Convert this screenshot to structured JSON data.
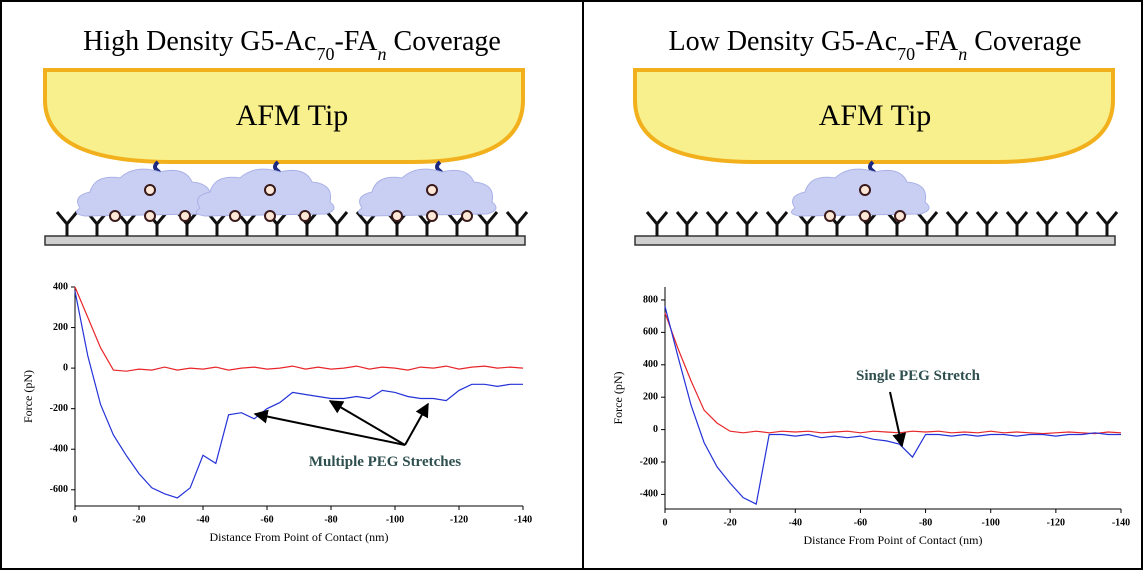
{
  "panels": [
    {
      "title": [
        {
          "text": "High Density G5-Ac"
        },
        {
          "text": "70",
          "sub": true
        },
        {
          "text": "-FA"
        },
        {
          "text": "n",
          "sub": true,
          "italic": true
        },
        {
          "text": " Coverage"
        }
      ],
      "tip_label": "AFM Tip"
    },
    {
      "title": [
        {
          "text": "Low Density G5-Ac"
        },
        {
          "text": "70",
          "sub": true
        },
        {
          "text": "-FA"
        },
        {
          "text": "n",
          "sub": true,
          "italic": true
        },
        {
          "text": " Coverage"
        }
      ],
      "tip_label": "AFM Tip"
    }
  ],
  "chart_data": [
    {
      "type": "line",
      "xlabel": "Distance From Point of Contact (nm)",
      "ylabel": "Force (pN)",
      "annotation": "Multiple PEG Stretches",
      "xlim": [
        0,
        -140
      ],
      "xticks": [
        0,
        -20,
        -40,
        -60,
        -80,
        -100,
        -120,
        -140
      ],
      "ylim": [
        -680,
        400
      ],
      "yticks": [
        -600,
        -400,
        -200,
        0,
        200,
        400
      ],
      "x": [
        0,
        -4,
        -8,
        -12,
        -16,
        -20,
        -24,
        -28,
        -32,
        -36,
        -40,
        -44,
        -48,
        -52,
        -56,
        -60,
        -64,
        -68,
        -72,
        -76,
        -80,
        -84,
        -88,
        -92,
        -96,
        -100,
        -104,
        -108,
        -112,
        -116,
        -120,
        -124,
        -128,
        -132,
        -136,
        -140
      ],
      "series": [
        {
          "color": "#e8262a",
          "values": [
            400,
            250,
            100,
            -10,
            -15,
            -5,
            -10,
            5,
            -10,
            0,
            -5,
            5,
            -10,
            0,
            5,
            -5,
            0,
            10,
            -5,
            5,
            -5,
            0,
            10,
            -5,
            5,
            0,
            -10,
            5,
            0,
            10,
            -5,
            5,
            10,
            0,
            5,
            0
          ]
        },
        {
          "color": "#2432d8",
          "values": [
            380,
            60,
            -180,
            -330,
            -430,
            -520,
            -590,
            -620,
            -640,
            -590,
            -430,
            -470,
            -230,
            -220,
            -250,
            -200,
            -170,
            -120,
            -130,
            -140,
            -150,
            -150,
            -140,
            -150,
            -110,
            -120,
            -140,
            -150,
            -150,
            -160,
            -110,
            -80,
            -80,
            -90,
            -80,
            -80
          ]
        }
      ]
    },
    {
      "type": "line",
      "xlabel": "Distance From Point of Contact (nm)",
      "ylabel": "Force (pN)",
      "annotation": "Single PEG Stretch",
      "xlim": [
        0,
        -140
      ],
      "xticks": [
        0,
        -20,
        -40,
        -60,
        -80,
        -100,
        -120,
        -140
      ],
      "ylim": [
        -490,
        880
      ],
      "yticks": [
        -400,
        -200,
        0,
        200,
        400,
        600,
        800
      ],
      "x": [
        0,
        -4,
        -8,
        -12,
        -16,
        -20,
        -24,
        -28,
        -32,
        -36,
        -40,
        -44,
        -48,
        -52,
        -56,
        -60,
        -64,
        -68,
        -72,
        -76,
        -80,
        -84,
        -88,
        -92,
        -96,
        -100,
        -104,
        -108,
        -112,
        -116,
        -120,
        -124,
        -128,
        -132,
        -136,
        -140
      ],
      "series": [
        {
          "color": "#e8262a",
          "values": [
            720,
            500,
            300,
            120,
            40,
            -10,
            -20,
            -10,
            -20,
            -10,
            -15,
            -10,
            -20,
            -15,
            -10,
            -20,
            -10,
            -15,
            -20,
            -10,
            -15,
            -10,
            -20,
            -15,
            -20,
            -10,
            -20,
            -15,
            -20,
            -25,
            -20,
            -15,
            -20,
            -25,
            -15,
            -20
          ]
        },
        {
          "color": "#2432d8",
          "values": [
            760,
            450,
            150,
            -80,
            -230,
            -330,
            -420,
            -460,
            -30,
            -30,
            -40,
            -30,
            -50,
            -40,
            -50,
            -40,
            -60,
            -70,
            -90,
            -170,
            -30,
            -30,
            -40,
            -30,
            -40,
            -30,
            -30,
            -40,
            -30,
            -30,
            -40,
            -30,
            -30,
            -20,
            -30,
            -30
          ]
        }
      ]
    }
  ]
}
